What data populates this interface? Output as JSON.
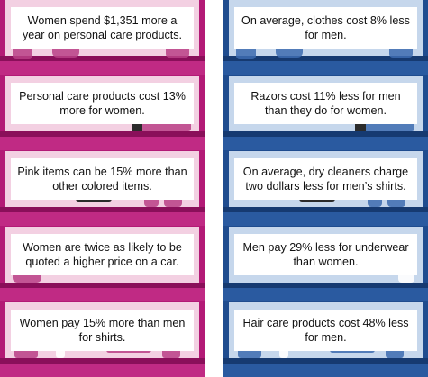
{
  "women_column": {
    "items": [
      {
        "text": "Women spend $1,351 more a year on personal care products."
      },
      {
        "text": "Personal care products cost 13% more for women."
      },
      {
        "text": "Pink items can be 15% more than other colored items."
      },
      {
        "text": "Women are twice as likely to be quoted a higher price on a car."
      },
      {
        "text": "Women pay 15% more than men for shirts."
      }
    ]
  },
  "men_column": {
    "items": [
      {
        "text": "On average, clothes cost 8% less for men."
      },
      {
        "text": "Razors cost 11% less for men than they do for women."
      },
      {
        "text": "On average, dry cleaners charge two dollars less for men’s shirts."
      },
      {
        "text": "Men pay 29% less for underwear than women."
      },
      {
        "text": "Hair care products cost 48% less for men."
      }
    ]
  },
  "colors": {
    "women_accent": "#b31a76",
    "men_accent": "#1f4c8f"
  }
}
